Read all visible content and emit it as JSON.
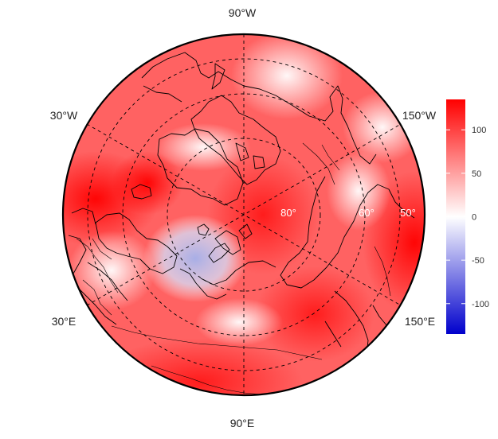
{
  "map": {
    "longitude_labels": [
      {
        "text": "90°W",
        "lon": -90
      },
      {
        "text": "150°W",
        "lon": -150
      },
      {
        "text": "150°E",
        "lon": 150
      },
      {
        "text": "90°E",
        "lon": 90
      },
      {
        "text": "30°E",
        "lon": 30
      },
      {
        "text": "30°W",
        "lon": -30
      }
    ],
    "latitude_labels": [
      {
        "text": "80°",
        "lat": 80
      },
      {
        "text": "60°",
        "lat": 60
      },
      {
        "text": "50°",
        "lat": 50
      }
    ],
    "colors": {
      "negative": "#0000cc",
      "neutral": "#ffffff",
      "positive": "#ff0000"
    }
  },
  "colorbar": {
    "min": -135,
    "max": 135,
    "ticks": [
      {
        "value": 100,
        "label": "100"
      },
      {
        "value": 50,
        "label": "50"
      },
      {
        "value": 0,
        "label": "0"
      },
      {
        "value": -50,
        "label": "-50"
      },
      {
        "value": -100,
        "label": "-100"
      }
    ]
  }
}
